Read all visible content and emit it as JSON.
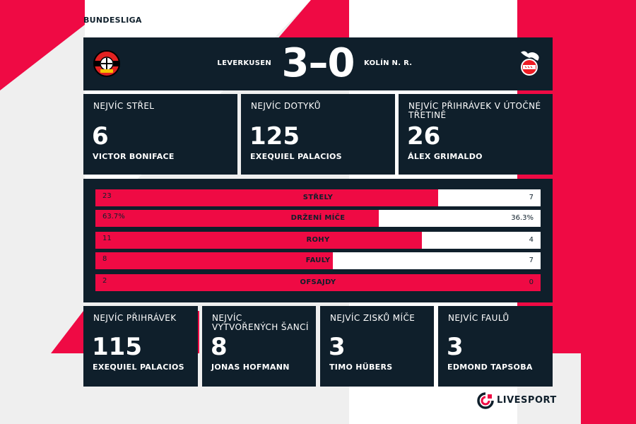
{
  "league": "BUNDESLIGA",
  "match": {
    "home_team": "LEVERKUSEN",
    "away_team": "KOLÍN N. R.",
    "score": "3–0"
  },
  "top_stats": [
    {
      "label": "NEJVÍC STŘEL",
      "value": "6",
      "player": "VICTOR BONIFACE"
    },
    {
      "label": "NEJVÍC DOTYKŮ",
      "value": "125",
      "player": "EXEQUIEL PALACIOS"
    },
    {
      "label": "NEJVÍC PŘIHRÁVEK V ÚTOČNÉ TŘETINĚ",
      "value": "26",
      "player": "ÁLEX GRIMALDO"
    }
  ],
  "comparison": [
    {
      "label": "STŘELY",
      "home": "23",
      "away": "7",
      "home_share": 0.77
    },
    {
      "label": "DRŽENÍ MÍČE",
      "home": "63.7%",
      "away": "36.3%",
      "home_share": 0.637
    },
    {
      "label": "ROHY",
      "home": "11",
      "away": "4",
      "home_share": 0.733
    },
    {
      "label": "FAULY",
      "home": "8",
      "away": "7",
      "home_share": 0.533
    },
    {
      "label": "OFSAJDY",
      "home": "2",
      "away": "0",
      "home_share": 1.0
    }
  ],
  "bottom_stats": [
    {
      "label": "NEJVÍC PŘIHRÁVEK",
      "value": "115",
      "player": "EXEQUIEL PALACIOS"
    },
    {
      "label": "NEJVÍC VYTVOŘENÝCH ŠANCÍ",
      "value": "8",
      "player": "JONAS HOFMANN"
    },
    {
      "label": "NEJVÍC ZISKŮ MÍČE",
      "value": "3",
      "player": "TIMO HÜBERS"
    },
    {
      "label": "NEJVÍC FAULŮ",
      "value": "3",
      "player": "EDMOND TAPSOBA"
    }
  ],
  "brand": "LIVESPORT",
  "colors": {
    "navy": "#0f1f2b",
    "accent": "#ef0a44",
    "background": "#efefef"
  },
  "icons": {
    "home_logo": "leverkusen-crest-icon",
    "away_logo": "koln-crest-icon",
    "brand_logo": "livesport-logo-icon"
  }
}
